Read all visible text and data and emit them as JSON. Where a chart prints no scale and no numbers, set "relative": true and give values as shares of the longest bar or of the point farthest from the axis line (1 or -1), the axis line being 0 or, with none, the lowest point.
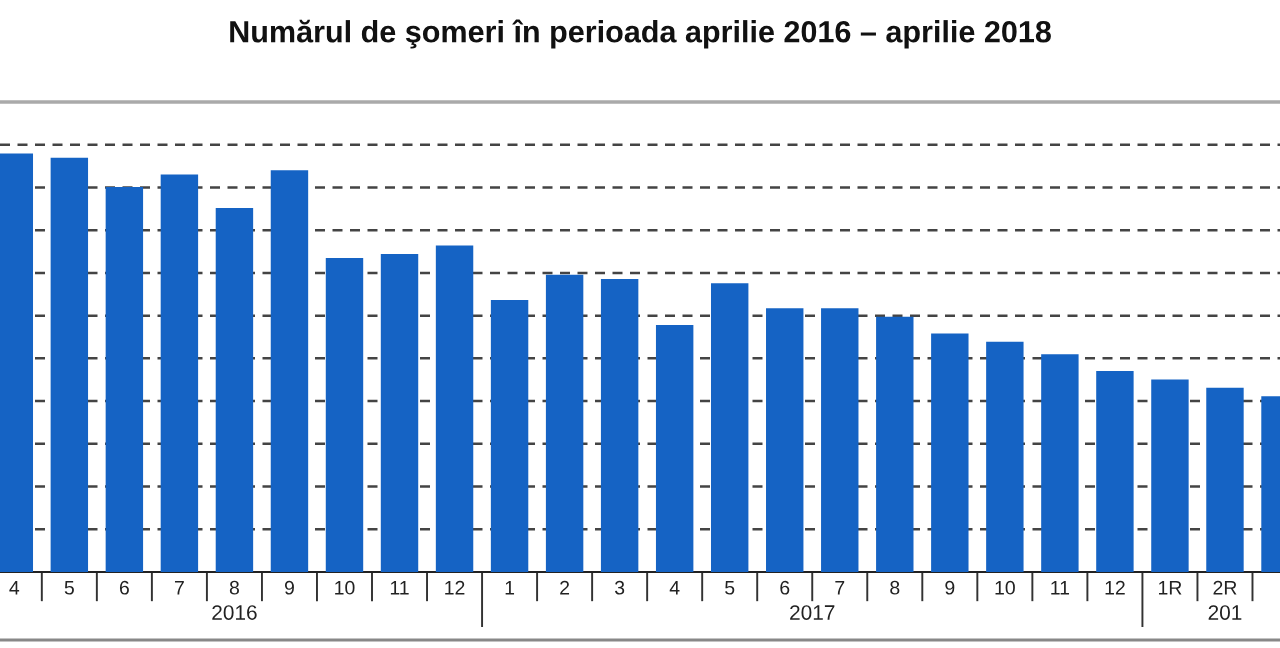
{
  "chart_data": {
    "type": "bar",
    "title": "Numărul de şomeri în perioada aprilie 2016 – aprilie 2018",
    "categories": [
      "4",
      "5",
      "6",
      "7",
      "8",
      "9",
      "10",
      "11",
      "12",
      "1",
      "2",
      "3",
      "4",
      "5",
      "6",
      "7",
      "8",
      "9",
      "10",
      "11",
      "12",
      "1R",
      "2R",
      null
    ],
    "values": [
      1,
      0.99,
      0.92,
      0.95,
      0.87,
      0.96,
      0.75,
      0.76,
      0.78,
      0.65,
      0.71,
      0.7,
      0.59,
      0.69,
      0.63,
      0.63,
      0.61,
      0.57,
      0.55,
      0.52,
      0.48,
      0.46,
      0.44,
      0.42
    ],
    "color": "#1563c4",
    "relative": true,
    "grid": "y",
    "annotations": [
      "2016",
      "2017",
      "201"
    ]
  }
}
